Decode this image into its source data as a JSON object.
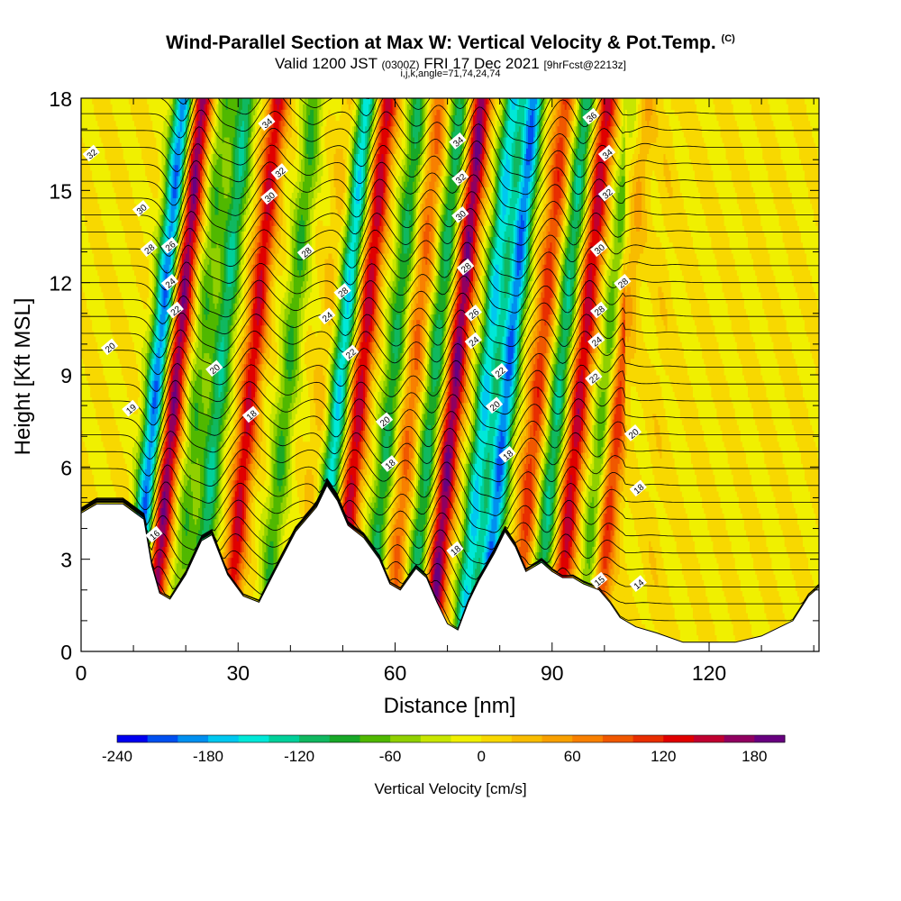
{
  "header": {
    "title": "Wind-Parallel Section at Max W: Vertical Velocity & Pot.Temp.",
    "copyright": "(C)",
    "valid_a": "Valid 1200 JST",
    "valid_b": "(0300Z)",
    "valid_c": "FRI 17 Dec 2021",
    "valid_d": "[9hrFcst@2213z]",
    "indices": "i,j,k,angle=71,74,24,74"
  },
  "chart_data": {
    "type": "heatmap",
    "description_fill": "vertical velocity (cm/s) filled contours",
    "description_lines": "potential temperature (C) contour lines",
    "xlabel": "Distance [nm]",
    "ylabel": "Height [Kft MSL]",
    "xlim": [
      0,
      141
    ],
    "ylim": [
      0,
      18
    ],
    "x_ticks": [
      "0",
      "30",
      "60",
      "90",
      "120"
    ],
    "y_ticks": [
      "0",
      "3",
      "6",
      "9",
      "12",
      "15",
      "18"
    ],
    "x_tick_values": [
      0,
      30,
      60,
      90,
      120
    ],
    "y_tick_values": [
      0,
      3,
      6,
      9,
      12,
      15,
      18
    ],
    "colorbar": {
      "label": "Vertical Velocity [cm/s]",
      "range": [
        -240,
        200
      ],
      "step": 20,
      "tick_values": [
        -240,
        -180,
        -120,
        -60,
        0,
        60,
        120,
        180
      ],
      "tick_labels": [
        "-240",
        "-180",
        "-120",
        "-60",
        "0",
        "60",
        "120",
        "180"
      ],
      "colors": [
        "#0000f0",
        "#0050f0",
        "#0090f0",
        "#00c8f0",
        "#00e8d8",
        "#00d09a",
        "#10b860",
        "#18a828",
        "#50b800",
        "#90d000",
        "#c8e600",
        "#f0f000",
        "#f8d800",
        "#f8bc00",
        "#f8a000",
        "#f88000",
        "#f05800",
        "#e82e00",
        "#e00000",
        "#c00030",
        "#900060",
        "#680080"
      ]
    },
    "vertical_velocity_cores": [
      {
        "x": 13,
        "w": -200
      },
      {
        "x": 16.5,
        "w": 180
      },
      {
        "x": 21,
        "w": -70
      },
      {
        "x": 25,
        "w": -120
      },
      {
        "x": 31,
        "w": 140
      },
      {
        "x": 38,
        "w": -80
      },
      {
        "x": 45,
        "w": 30
      },
      {
        "x": 48,
        "w": -160
      },
      {
        "x": 52,
        "w": 150
      },
      {
        "x": 58,
        "w": -100
      },
      {
        "x": 62,
        "w": 80
      },
      {
        "x": 66,
        "w": -110
      },
      {
        "x": 70,
        "w": 180
      },
      {
        "x": 76,
        "w": -160
      },
      {
        "x": 80,
        "w": -200
      },
      {
        "x": 86,
        "w": 110
      },
      {
        "x": 90,
        "w": -120
      },
      {
        "x": 94,
        "w": 150
      },
      {
        "x": 99,
        "w": -80
      },
      {
        "x": 101.5,
        "w": 120
      },
      {
        "x": 110,
        "w": 30
      }
    ],
    "terrain": [
      [
        0,
        4.5
      ],
      [
        3,
        4.8
      ],
      [
        8,
        4.8
      ],
      [
        12,
        4.3
      ],
      [
        13.5,
        2.8
      ],
      [
        15,
        1.9
      ],
      [
        17,
        1.7
      ],
      [
        20,
        2.5
      ],
      [
        23,
        3.6
      ],
      [
        25,
        3.8
      ],
      [
        28,
        2.5
      ],
      [
        31,
        1.8
      ],
      [
        34,
        1.6
      ],
      [
        37,
        2.6
      ],
      [
        41,
        3.9
      ],
      [
        45,
        4.7
      ],
      [
        47,
        5.4
      ],
      [
        49,
        4.9
      ],
      [
        51,
        4.1
      ],
      [
        54,
        3.7
      ],
      [
        57,
        3.0
      ],
      [
        59,
        2.2
      ],
      [
        61,
        2.0
      ],
      [
        64,
        2.7
      ],
      [
        66,
        2.4
      ],
      [
        68,
        1.6
      ],
      [
        70,
        0.9
      ],
      [
        72,
        0.7
      ],
      [
        74,
        1.6
      ],
      [
        76,
        2.3
      ],
      [
        79,
        3.2
      ],
      [
        81,
        3.9
      ],
      [
        83,
        3.4
      ],
      [
        85,
        2.6
      ],
      [
        88,
        2.9
      ],
      [
        90,
        2.6
      ],
      [
        92,
        2.4
      ],
      [
        94,
        2.4
      ],
      [
        96,
        2.2
      ],
      [
        99,
        2.0
      ],
      [
        101,
        1.6
      ],
      [
        103,
        1.1
      ],
      [
        106,
        0.8
      ],
      [
        110,
        0.6
      ],
      [
        115,
        0.3
      ],
      [
        125,
        0.3
      ],
      [
        130,
        0.5
      ],
      [
        136,
        1.0
      ],
      [
        139,
        1.8
      ],
      [
        141,
        2.1
      ]
    ],
    "isentrope_labels": [
      {
        "text": "32",
        "x": 2,
        "y": 16.2
      },
      {
        "text": "34",
        "x": 35.5,
        "y": 17.2
      },
      {
        "text": "36",
        "x": 97.5,
        "y": 17.4
      },
      {
        "text": "34",
        "x": 72,
        "y": 16.6
      },
      {
        "text": "34",
        "x": 100.5,
        "y": 16.2
      },
      {
        "text": "32",
        "x": 38,
        "y": 15.6
      },
      {
        "text": "32",
        "x": 72.5,
        "y": 15.4
      },
      {
        "text": "32",
        "x": 100.5,
        "y": 14.9
      },
      {
        "text": "30",
        "x": 11.5,
        "y": 14.4
      },
      {
        "text": "30",
        "x": 36,
        "y": 14.8
      },
      {
        "text": "30",
        "x": 72.5,
        "y": 14.2
      },
      {
        "text": "30",
        "x": 99,
        "y": 13.1
      },
      {
        "text": "28",
        "x": 13,
        "y": 13.1
      },
      {
        "text": "26",
        "x": 17,
        "y": 13.2
      },
      {
        "text": "28",
        "x": 43,
        "y": 13.0
      },
      {
        "text": "28",
        "x": 73.5,
        "y": 12.5
      },
      {
        "text": "28",
        "x": 103.5,
        "y": 12.0
      },
      {
        "text": "24",
        "x": 17,
        "y": 12.0
      },
      {
        "text": "28",
        "x": 50,
        "y": 11.7
      },
      {
        "text": "28",
        "x": 99,
        "y": 11.1
      },
      {
        "text": "22",
        "x": 18,
        "y": 11.1
      },
      {
        "text": "24",
        "x": 47,
        "y": 10.9
      },
      {
        "text": "26",
        "x": 75,
        "y": 11.0
      },
      {
        "text": "24",
        "x": 98.5,
        "y": 10.1
      },
      {
        "text": "20",
        "x": 5.5,
        "y": 9.9
      },
      {
        "text": "22",
        "x": 51.5,
        "y": 9.7
      },
      {
        "text": "24",
        "x": 75,
        "y": 10.1
      },
      {
        "text": "20",
        "x": 25.5,
        "y": 9.2
      },
      {
        "text": "22",
        "x": 80,
        "y": 9.1
      },
      {
        "text": "22",
        "x": 98,
        "y": 8.9
      },
      {
        "text": "19",
        "x": 9.5,
        "y": 7.9
      },
      {
        "text": "18",
        "x": 32.5,
        "y": 7.7
      },
      {
        "text": "20",
        "x": 58,
        "y": 7.5
      },
      {
        "text": "20",
        "x": 79,
        "y": 8.0
      },
      {
        "text": "20",
        "x": 105.5,
        "y": 7.1
      },
      {
        "text": "18",
        "x": 59,
        "y": 6.1
      },
      {
        "text": "18",
        "x": 81.5,
        "y": 6.4
      },
      {
        "text": "18",
        "x": 106.5,
        "y": 5.3
      },
      {
        "text": "16",
        "x": 14,
        "y": 3.8
      },
      {
        "text": "18",
        "x": 71.5,
        "y": 3.3
      },
      {
        "text": "15",
        "x": 99,
        "y": 2.3
      },
      {
        "text": "14",
        "x": 106.5,
        "y": 2.2
      }
    ]
  }
}
